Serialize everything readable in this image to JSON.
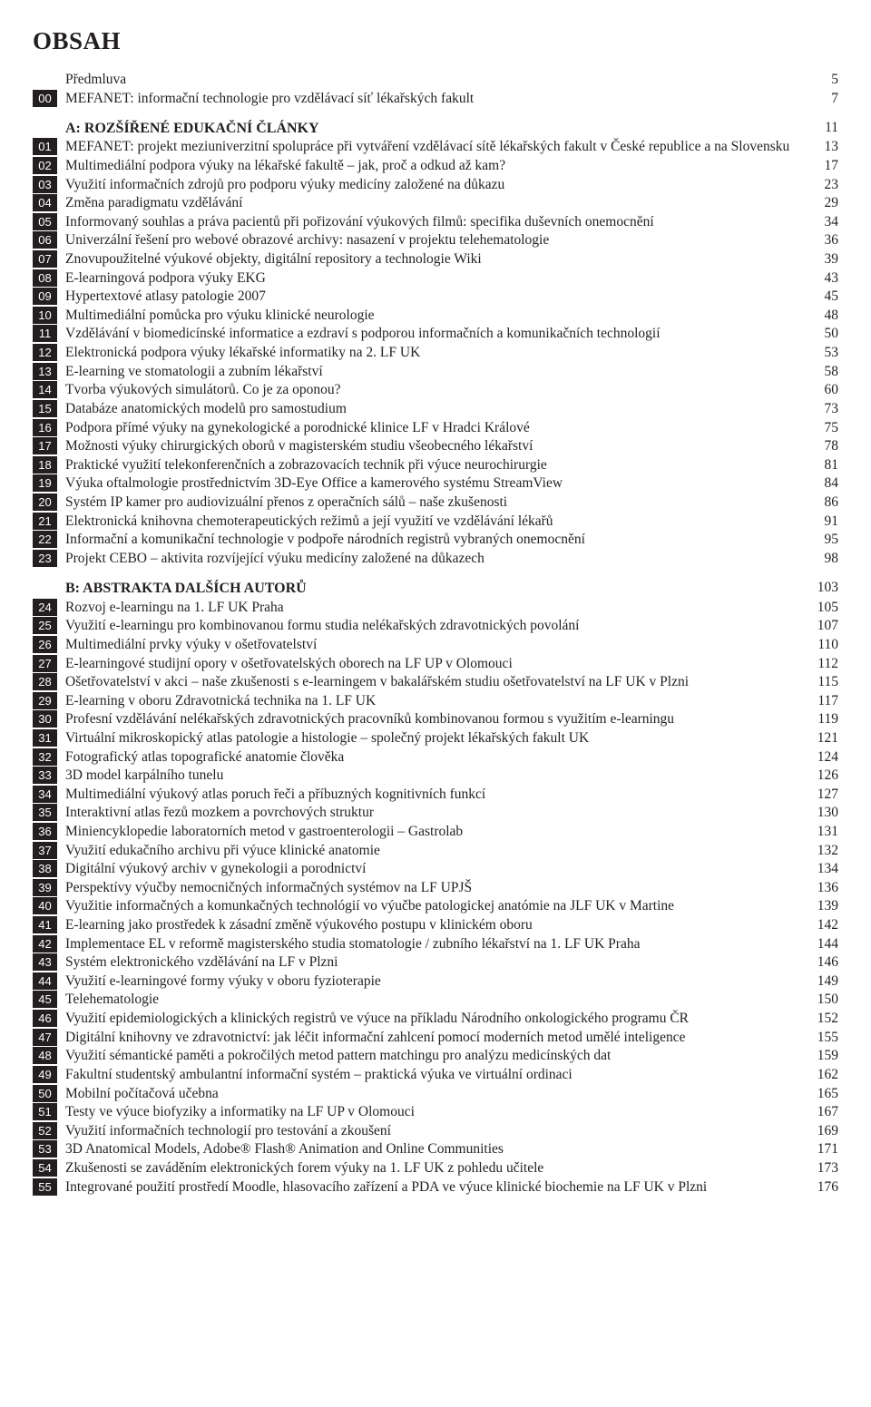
{
  "heading": "OBSAH",
  "colors": {
    "badge_bg": "#231f20",
    "badge_fg": "#ffffff",
    "text": "#231f20",
    "bg": "#ffffff"
  },
  "front": [
    {
      "badge": "",
      "title": "Předmluva",
      "page": "5"
    },
    {
      "badge": "00",
      "title": "MEFANET: informační technologie pro vzdělávací síť lékařských fakult",
      "page": "7"
    }
  ],
  "sectionA": {
    "title": "A: ROZŠÍŘENÉ EDUKAČNÍ ČLÁNKY",
    "page": "11"
  },
  "a": [
    {
      "badge": "01",
      "title": "MEFANET: projekt meziuniverzitní spolupráce při vytváření vzdělávací sítě lékařských fakult v České republice a na Slovensku",
      "page": "13"
    },
    {
      "badge": "02",
      "title": "Multimediální podpora výuky na lékařské fakultě – jak, proč a odkud až kam?",
      "page": "17"
    },
    {
      "badge": "03",
      "title": "Využití informačních zdrojů pro podporu výuky medicíny založené na důkazu",
      "page": "23"
    },
    {
      "badge": "04",
      "title": "Změna paradigmatu vzdělávání",
      "page": "29"
    },
    {
      "badge": "05",
      "title": "Informovaný souhlas a práva pacientů při pořizování výukových filmů: specifika duševních onemocnění",
      "page": "34"
    },
    {
      "badge": "06",
      "title": "Univerzální řešení pro webové obrazové archivy: nasazení v projektu telehematologie",
      "page": "36"
    },
    {
      "badge": "07",
      "title": "Znovupoužitelné výukové objekty, digitální repository a technologie Wiki",
      "page": "39"
    },
    {
      "badge": "08",
      "title": "E-learningová podpora výuky EKG",
      "page": "43"
    },
    {
      "badge": "09",
      "title": "Hypertextové atlasy patologie 2007",
      "page": "45"
    },
    {
      "badge": "10",
      "title": "Multimediální pomůcka pro výuku klinické neurologie",
      "page": "48"
    },
    {
      "badge": "11",
      "title": "Vzdělávání v biomedicínské informatice a ezdraví s podporou informačních a komunikačních technologií",
      "page": "50"
    },
    {
      "badge": "12",
      "title": "Elektronická podpora výuky lékařské informatiky na 2. LF UK",
      "page": "53"
    },
    {
      "badge": "13",
      "title": "E-learning ve stomatologii a zubním lékařství",
      "page": "58"
    },
    {
      "badge": "14",
      "title": "Tvorba výukových simulátorů. Co je za oponou?",
      "page": "60"
    },
    {
      "badge": "15",
      "title": "Databáze anatomických modelů pro samostudium",
      "page": "73"
    },
    {
      "badge": "16",
      "title": "Podpora přímé výuky na gynekologické a porodnické klinice LF v Hradci Králové",
      "page": "75"
    },
    {
      "badge": "17",
      "title": "Možnosti výuky chirurgických oborů v magisterském studiu všeobecného lékařství",
      "page": "78"
    },
    {
      "badge": "18",
      "title": "Praktické využití telekonferenčních a zobrazovacích technik při výuce neurochirurgie",
      "page": "81"
    },
    {
      "badge": "19",
      "title": "Výuka oftalmologie prostřednictvím 3D-Eye Office a kamerového systému StreamView",
      "page": "84"
    },
    {
      "badge": "20",
      "title": "Systém IP kamer pro audiovizuální přenos z operačních sálů – naše zkušenosti",
      "page": "86"
    },
    {
      "badge": "21",
      "title": "Elektronická knihovna chemoterapeutických režimů a její využití ve vzdělávání lékařů",
      "page": "91"
    },
    {
      "badge": "22",
      "title": "Informační a komunikační technologie v podpoře národních registrů vybraných onemocnění",
      "page": "95"
    },
    {
      "badge": "23",
      "title": "Projekt CEBO – aktivita rozvíjející výuku medicíny založené na důkazech",
      "page": "98"
    }
  ],
  "sectionB": {
    "title": "B: ABSTRAKTA DALŠÍCH AUTORŮ",
    "page": "103"
  },
  "b": [
    {
      "badge": "24",
      "title": "Rozvoj e-learningu na 1. LF UK Praha",
      "page": "105"
    },
    {
      "badge": "25",
      "title": "Využití e-learningu pro kombinovanou formu studia nelékařských zdravotnických povolání",
      "page": "107"
    },
    {
      "badge": "26",
      "title": "Multimediální prvky výuky v ošetřovatelství",
      "page": "110"
    },
    {
      "badge": "27",
      "title": "E-learningové studijní opory v ošetřovatelských oborech na LF UP v Olomouci",
      "page": "112"
    },
    {
      "badge": "28",
      "title": "Ošetřovatelství v akci – naše zkušenosti s e-learningem v bakalářském studiu ošetřovatelství na LF UK v Plzni",
      "page": "115"
    },
    {
      "badge": "29",
      "title": "E-learning v oboru Zdravotnická technika na 1. LF UK",
      "page": "117"
    },
    {
      "badge": "30",
      "title": "Profesní vzdělávání nelékařských zdravotnických pracovníků kombinovanou formou s využitím e-learningu",
      "page": "119"
    },
    {
      "badge": "31",
      "title": "Virtuální mikroskopický atlas patologie a histologie – společný projekt lékařských fakult UK",
      "page": "121"
    },
    {
      "badge": "32",
      "title": "Fotografický atlas topografické anatomie člověka",
      "page": "124"
    },
    {
      "badge": "33",
      "title": "3D model karpálního tunelu",
      "page": "126"
    },
    {
      "badge": "34",
      "title": "Multimediální výukový atlas poruch řeči a příbuzných kognitivních funkcí",
      "page": "127"
    },
    {
      "badge": "35",
      "title": "Interaktivní atlas řezů mozkem a povrchových struktur",
      "page": "130"
    },
    {
      "badge": "36",
      "title": "Miniencyklopedie laboratorních metod v gastroenterologii – Gastrolab",
      "page": "131"
    },
    {
      "badge": "37",
      "title": "Využití edukačního archivu při výuce klinické anatomie",
      "page": "132"
    },
    {
      "badge": "38",
      "title": "Digitální výukový archiv v gynekologii a porodnictví",
      "page": "134"
    },
    {
      "badge": "39",
      "title": "Perspektívy výučby nemocničných informačných systémov na LF UPJŠ",
      "page": "136"
    },
    {
      "badge": "40",
      "title": "Využitie informačných a komunkačných technológií vo výučbe patologickej anatómie na JLF UK v Martine",
      "page": "139"
    },
    {
      "badge": "41",
      "title": "E-learning jako prostředek k zásadní změně výukového postupu v klinickém oboru",
      "page": "142"
    },
    {
      "badge": "42",
      "title": "Implementace EL v reformě magisterského studia stomatologie / zubního lékařství na 1. LF UK Praha",
      "page": "144"
    },
    {
      "badge": "43",
      "title": "Systém elektronického vzdělávání na LF v Plzni",
      "page": "146"
    },
    {
      "badge": "44",
      "title": "Využití e-learningové formy výuky v oboru fyzioterapie",
      "page": "149"
    },
    {
      "badge": "45",
      "title": "Telehematologie",
      "page": "150"
    },
    {
      "badge": "46",
      "title": "Využití epidemiologických a klinických registrů ve výuce na příkladu Národního onkologického programu ČR",
      "page": "152"
    },
    {
      "badge": "47",
      "title": "Digitální knihovny ve zdravotnictví: jak léčit informační zahlcení pomocí moderních metod umělé inteligence",
      "page": "155"
    },
    {
      "badge": "48",
      "title": "Využití sémantické paměti a pokročilých metod pattern matchingu pro analýzu medicínských dat",
      "page": "159"
    },
    {
      "badge": "49",
      "title": "Fakultní studentský ambulantní informační systém – praktická výuka ve virtuální ordinaci",
      "page": "162"
    },
    {
      "badge": "50",
      "title": "Mobilní počítačová učebna",
      "page": "165"
    },
    {
      "badge": "51",
      "title": "Testy ve výuce biofyziky a informatiky na LF UP v Olomouci",
      "page": "167"
    },
    {
      "badge": "52",
      "title": "Využití informačních technologií pro testování a zkoušení",
      "page": "169"
    },
    {
      "badge": "53",
      "title": "3D Anatomical Models, Adobe® Flash® Animation and Online Communities",
      "page": "171"
    },
    {
      "badge": "54",
      "title": "Zkušenosti se zaváděním elektronických forem výuky na 1. LF UK z pohledu učitele",
      "page": "173"
    },
    {
      "badge": "55",
      "title": "Integrované použití prostředí Moodle, hlasovacího zařízení a PDA ve výuce klinické biochemie na LF UK v Plzni",
      "page": "176"
    }
  ]
}
